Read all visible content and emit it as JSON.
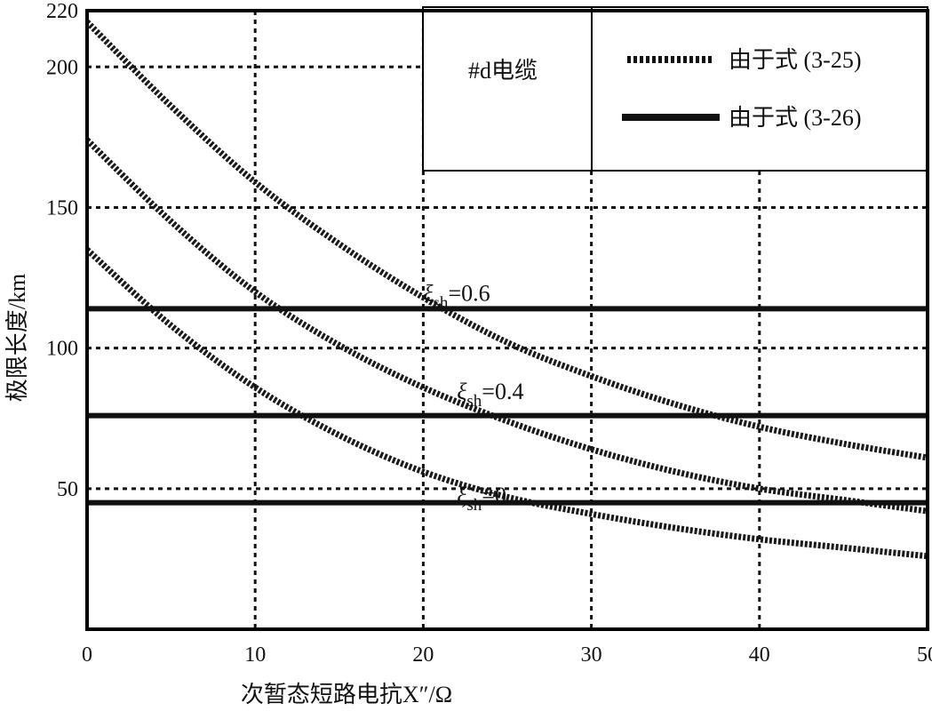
{
  "chart_data": {
    "type": "line",
    "xlabel": "次暂态短路电抗X″/Ω",
    "ylabel": "极限长度/km",
    "xlim": [
      0,
      50
    ],
    "ylim": [
      0,
      220
    ],
    "x_ticks": [
      0,
      10,
      20,
      30,
      40,
      50
    ],
    "y_ticks": [
      50,
      100,
      150,
      200,
      220
    ],
    "grid": true,
    "legend": {
      "placement": "top-right",
      "title": "#d电缆",
      "entries": [
        {
          "label": "由于式 (3-25)",
          "style": "dotted"
        },
        {
          "label": "由于式 (3-26)",
          "style": "solid"
        }
      ]
    },
    "annotations": [
      {
        "symbol": "ξ",
        "sub": "sh",
        "value": "=0.6",
        "x": 20.0,
        "y": 120
      },
      {
        "symbol": "ξ",
        "sub": "sh",
        "value": "=0.4",
        "x": 22.0,
        "y": 85
      },
      {
        "symbol": "ξ",
        "sub": "sh",
        "value": "=0",
        "x": 22.0,
        "y": 48
      }
    ],
    "series": [
      {
        "style": "dotted",
        "x": [
          0,
          5,
          10,
          15,
          20,
          25,
          30,
          35,
          40,
          45,
          50
        ],
        "y": [
          216,
          186,
          159,
          137,
          118,
          102,
          90,
          80,
          72,
          66,
          61
        ]
      },
      {
        "style": "dotted",
        "x": [
          0,
          5,
          10,
          15,
          20,
          25,
          30,
          35,
          40,
          45,
          50
        ],
        "y": [
          174,
          145,
          120,
          101,
          86,
          74,
          64,
          56,
          50,
          46,
          42
        ]
      },
      {
        "style": "dotted",
        "x": [
          0,
          5,
          10,
          15,
          20,
          25,
          30,
          35,
          40,
          45,
          50
        ],
        "y": [
          135,
          108,
          86,
          69,
          56,
          47,
          41,
          36,
          32,
          29,
          26
        ]
      },
      {
        "style": "solid",
        "x": [
          0,
          50
        ],
        "y": [
          114,
          114
        ]
      },
      {
        "style": "solid",
        "x": [
          0,
          50
        ],
        "y": [
          76,
          76
        ]
      },
      {
        "style": "solid",
        "x": [
          0,
          50
        ],
        "y": [
          45,
          45
        ]
      }
    ]
  }
}
